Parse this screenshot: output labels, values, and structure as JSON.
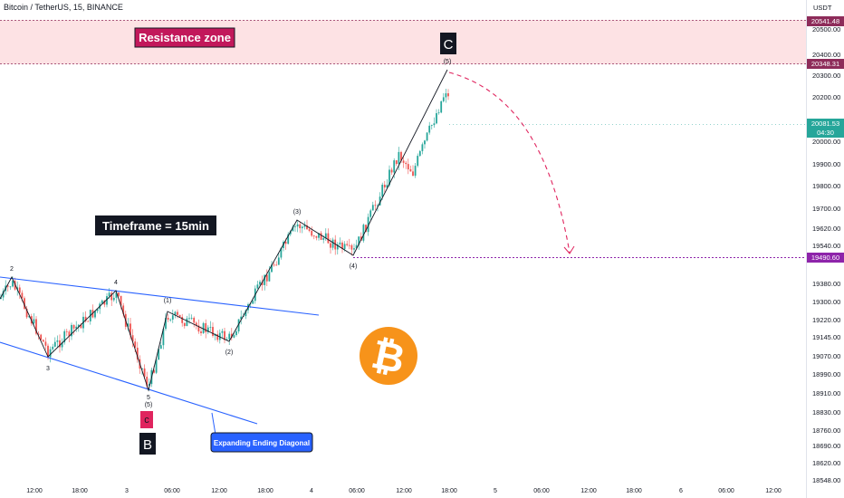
{
  "header": {
    "symbol_title": "Bitcoin / TetherUS, 15, BINANCE",
    "currency": "USDT"
  },
  "annotations": {
    "resistance_zone": "Resistance zone",
    "timeframe": "Timeframe = 15min",
    "diagonal_callout": "Expanding Ending Diagonal",
    "label_C": "C",
    "label_B": "B",
    "label_c": "c",
    "wave_labels": {
      "w2_top": "2",
      "w3_low": "3",
      "w4_top": "4",
      "w5_low": "5",
      "w5_low_paren": "(5)",
      "w1_paren": "(1)",
      "w2_paren": "(2)",
      "w3_paren": "(3)",
      "w4_paren": "(4)",
      "w5_paren": "(5)"
    }
  },
  "price_tags": {
    "zone_top": "20541.48",
    "zone_bottom": "20348.31",
    "last_price": "20081.53",
    "countdown": "04:30",
    "target": "19490.60"
  },
  "colors": {
    "zone_fill": "#fde2e4",
    "zone_line": "#8e2c5a",
    "up_candle": "#26a69a",
    "down_candle": "#ef5350",
    "trendline": "#2962ff",
    "wave_line": "#131722",
    "projection": "#e0245e",
    "target_line": "#8e24aa",
    "bitcoin": "#f7931a"
  },
  "chart_data": {
    "type": "candlestick",
    "instrument": "Bitcoin / TetherUS",
    "interval": "15",
    "exchange": "BINANCE",
    "y_axis": {
      "ticks": [
        20500.0,
        20400.0,
        20300.0,
        20200.0,
        20000.0,
        19900.0,
        19800.0,
        19700.0,
        19620.0,
        19540.0,
        19380.0,
        19300.0,
        19220.0,
        19145.0,
        19070.0,
        18990.0,
        18910.0,
        18830.0,
        18760.0,
        18690.0,
        18620.0,
        18548.0
      ],
      "range": [
        18548,
        20600
      ]
    },
    "x_axis": {
      "ticks": [
        "12:00",
        "18:00",
        "3",
        "06:00",
        "12:00",
        "18:00",
        "4",
        "06:00",
        "12:00",
        "18:00",
        "5",
        "06:00",
        "12:00",
        "18:00",
        "6",
        "06:00",
        "12:00"
      ]
    },
    "resistance_zone": [
      20348.31,
      20541.48
    ],
    "target_level": 19490.6,
    "last_price": 20081.53,
    "wave_path": [
      {
        "label": "2",
        "price": 19445
      },
      {
        "label": "3",
        "price": 19060
      },
      {
        "label": "4",
        "price": 19345
      },
      {
        "label": "5",
        "price": 18920
      },
      {
        "label": "(1)",
        "price": 19255
      },
      {
        "label": "(2)",
        "price": 19140
      },
      {
        "label": "(3)",
        "price": 19655
      },
      {
        "label": "(4)",
        "price": 19490
      },
      {
        "label": "(5)",
        "price": 20315
      }
    ]
  }
}
